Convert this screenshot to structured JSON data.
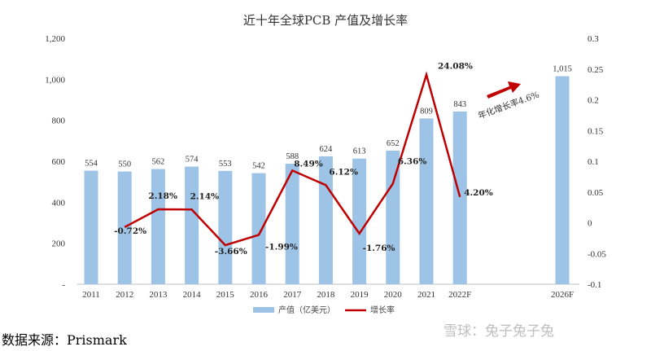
{
  "chart_data": {
    "type": "bar",
    "title": "近十年全球PCB 产值及增长率",
    "categories": [
      "2011",
      "2012",
      "2013",
      "2014",
      "2015",
      "2016",
      "2017",
      "2018",
      "2019",
      "2020",
      "2021",
      "2022F",
      "2026F"
    ],
    "series": [
      {
        "name": "产值（亿美元）",
        "type": "bar",
        "axis": "left",
        "color": "#9DC3E6",
        "values": [
          554,
          550,
          562,
          574,
          553,
          542,
          588,
          624,
          613,
          652,
          809,
          843,
          1015
        ],
        "labels": [
          "554",
          "550",
          "562",
          "574",
          "553",
          "542",
          "588",
          "624",
          "613",
          "652",
          "809",
          "843",
          "1,015"
        ]
      },
      {
        "name": "增长率",
        "type": "line",
        "axis": "right",
        "color": "#C00000",
        "x": [
          "2012",
          "2013",
          "2014",
          "2015",
          "2016",
          "2017",
          "2018",
          "2019",
          "2020",
          "2021",
          "2022F"
        ],
        "values": [
          -0.0072,
          0.0218,
          0.0214,
          -0.0366,
          -0.0199,
          0.0849,
          0.0612,
          -0.0176,
          0.0636,
          0.2408,
          0.042
        ],
        "labels": [
          "-0.72%",
          "2.18%",
          "2.14%",
          "-3.66%",
          "-1.99%",
          "8.49%",
          "6.12%",
          "-1.76%",
          "6.36%",
          "24.08%",
          "4.20%"
        ]
      }
    ],
    "left_axis": {
      "ylim": [
        0,
        1200
      ],
      "ticks": [
        "-",
        "200",
        "400",
        "600",
        "800",
        "1,000",
        "1,200"
      ]
    },
    "right_axis": {
      "ylim": [
        -0.1,
        0.3
      ],
      "ticks": [
        "-0.1",
        "-0.05",
        "0",
        "0.05",
        "0.1",
        "0.15",
        "0.2",
        "0.25",
        "0.3"
      ]
    },
    "annotation": "年化增长率4.6%",
    "annotation_arrow_color": "#C00000",
    "legend_position": "bottom"
  },
  "source_text": "数据来源：Prismark",
  "watermark_text": "雪球：兔子兔子兔"
}
